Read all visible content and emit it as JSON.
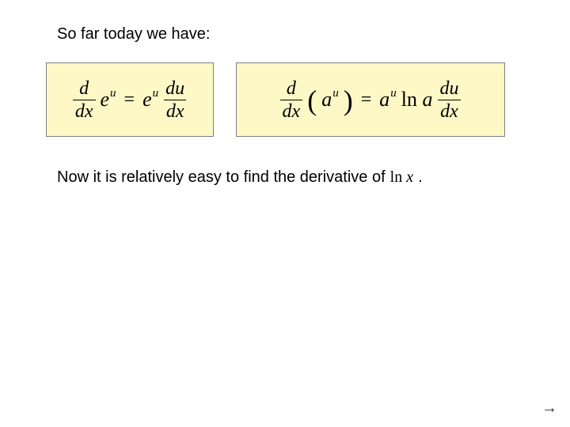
{
  "heading": "So far today we have:",
  "line2_prefix": "Now it is relatively easy to find the derivative of",
  "line2_math_ln": "ln",
  "line2_math_x": "x",
  "line2_suffix": ".",
  "arrow_glyph": "→",
  "formula_box": {
    "background_color": "#fdf8c6",
    "border_color": "#808080"
  },
  "formula1": {
    "frac1_num": "d",
    "frac1_den": "dx",
    "base1": "e",
    "exp1": "u",
    "eq": "=",
    "base2": "e",
    "exp2": "u",
    "frac2_num": "du",
    "frac2_den": "dx"
  },
  "formula2": {
    "frac1_num": "d",
    "frac1_den": "dx",
    "lparen": "(",
    "base1": "a",
    "exp1": "u",
    "rparen": ")",
    "eq": "=",
    "base2": "a",
    "exp2": "u",
    "ln": "ln",
    "a": "a",
    "frac2_num": "du",
    "frac2_den": "dx"
  },
  "colors": {
    "text": "#000000",
    "background": "#ffffff"
  }
}
